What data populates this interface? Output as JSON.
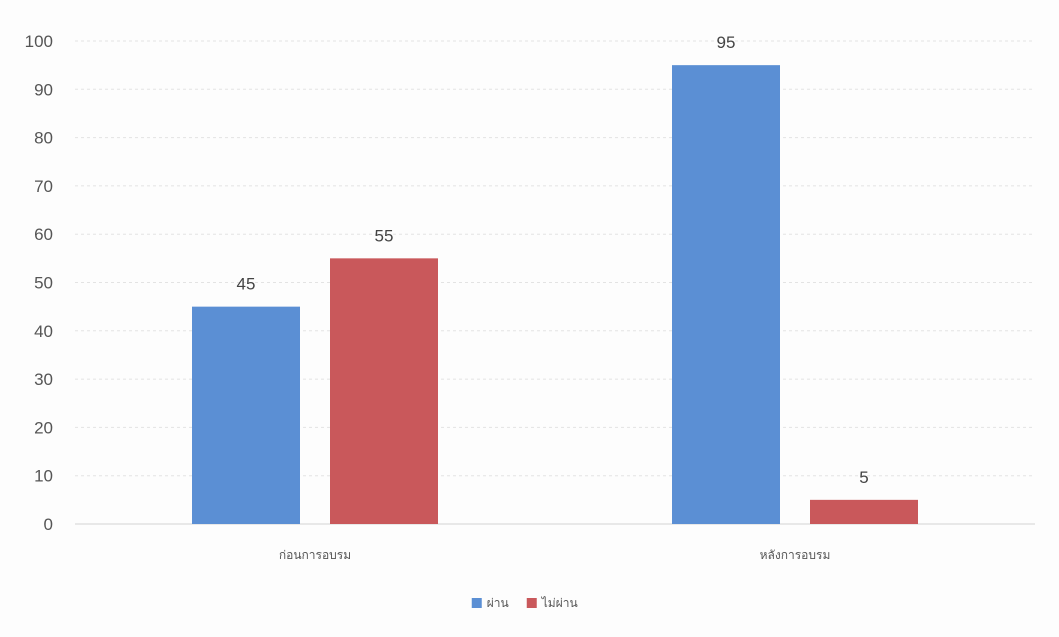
{
  "chart_data": {
    "type": "bar",
    "categories": [
      "ก่อนการอบรม",
      "หลังการอบรม"
    ],
    "series": [
      {
        "name": "ผ่าน",
        "values": [
          45,
          95
        ],
        "color": "#5b8fd4"
      },
      {
        "name": "ไม่ผ่าน",
        "values": [
          55,
          5
        ],
        "color": "#c9585b"
      }
    ],
    "title": "",
    "xlabel": "",
    "ylabel": "",
    "ylim": [
      0,
      100
    ],
    "yticks": [
      0,
      10,
      20,
      30,
      40,
      50,
      60,
      70,
      80,
      90,
      100
    ],
    "grid": true,
    "legend_position": "bottom",
    "data_labels": true
  }
}
